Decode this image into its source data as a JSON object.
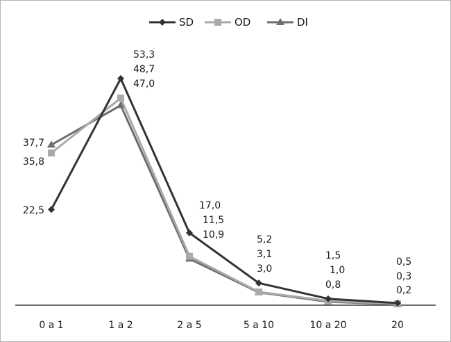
{
  "chart_data": {
    "type": "line",
    "categories": [
      "0 a 1",
      "1  a 2",
      "2 a 5",
      "5 a 10",
      "10 a 20",
      "20"
    ],
    "series": [
      {
        "name": "SD",
        "color": "#333333",
        "marker": "diamond",
        "values": [
          22.5,
          53.3,
          17.0,
          5.2,
          1.5,
          0.5
        ],
        "labels": [
          "22,5",
          "53,3",
          "17,0",
          "5,2",
          "1,5",
          "0,5"
        ]
      },
      {
        "name": "OD",
        "color": "#a9a9a9",
        "marker": "square",
        "values": [
          35.8,
          48.7,
          11.5,
          3.1,
          1.0,
          0.3
        ],
        "labels": [
          "35,8",
          "48,7",
          "11,5",
          "3,1",
          "1,0",
          "0,3"
        ]
      },
      {
        "name": "DI",
        "color": "#6e6e6e",
        "marker": "triangle",
        "values": [
          37.7,
          47.0,
          10.9,
          3.0,
          0.8,
          0.2
        ],
        "labels": [
          "37,7",
          "47,0",
          "10,9",
          "3,0",
          "0,8",
          "0,2"
        ]
      }
    ],
    "title": "",
    "xlabel": "",
    "ylabel": "",
    "ylim": [
      0,
      60
    ],
    "grid": false,
    "legend": "top-center"
  }
}
